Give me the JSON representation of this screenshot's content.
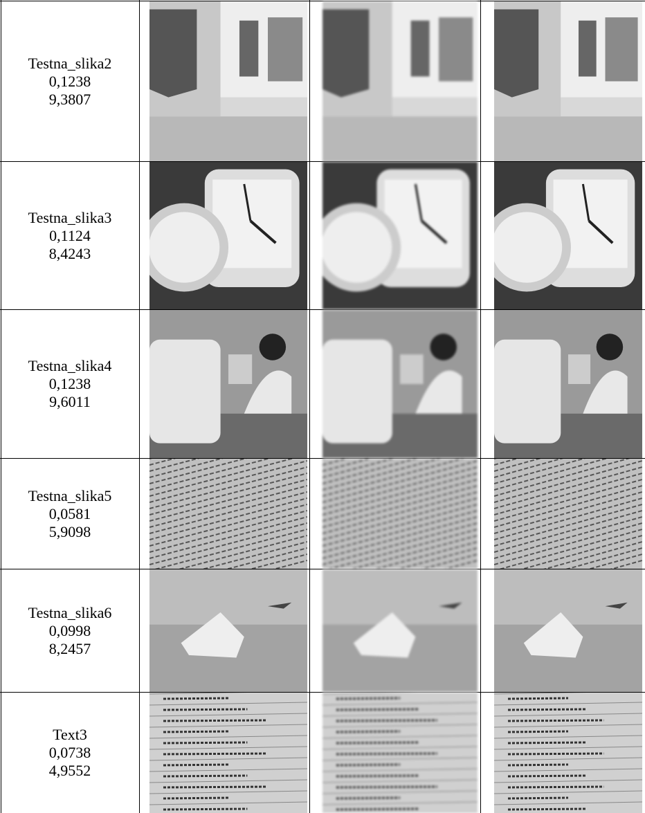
{
  "table": {
    "rows": [
      {
        "name": "Testna_slika2",
        "values": [
          "0,1238",
          "9,3807"
        ]
      },
      {
        "name": "Testna_slika3",
        "values": [
          "0,1124",
          "8,4243"
        ]
      },
      {
        "name": "Testna_slika4",
        "values": [
          "0,1238",
          "9,6011"
        ]
      },
      {
        "name": "Testna_slika5",
        "values": [
          "0,0581",
          "5,9098"
        ]
      },
      {
        "name": "Testna_slika6",
        "values": [
          "0,0998",
          "8,2457"
        ]
      },
      {
        "name": "Text3",
        "values": [
          "0,0738",
          "4,9552"
        ]
      }
    ]
  }
}
